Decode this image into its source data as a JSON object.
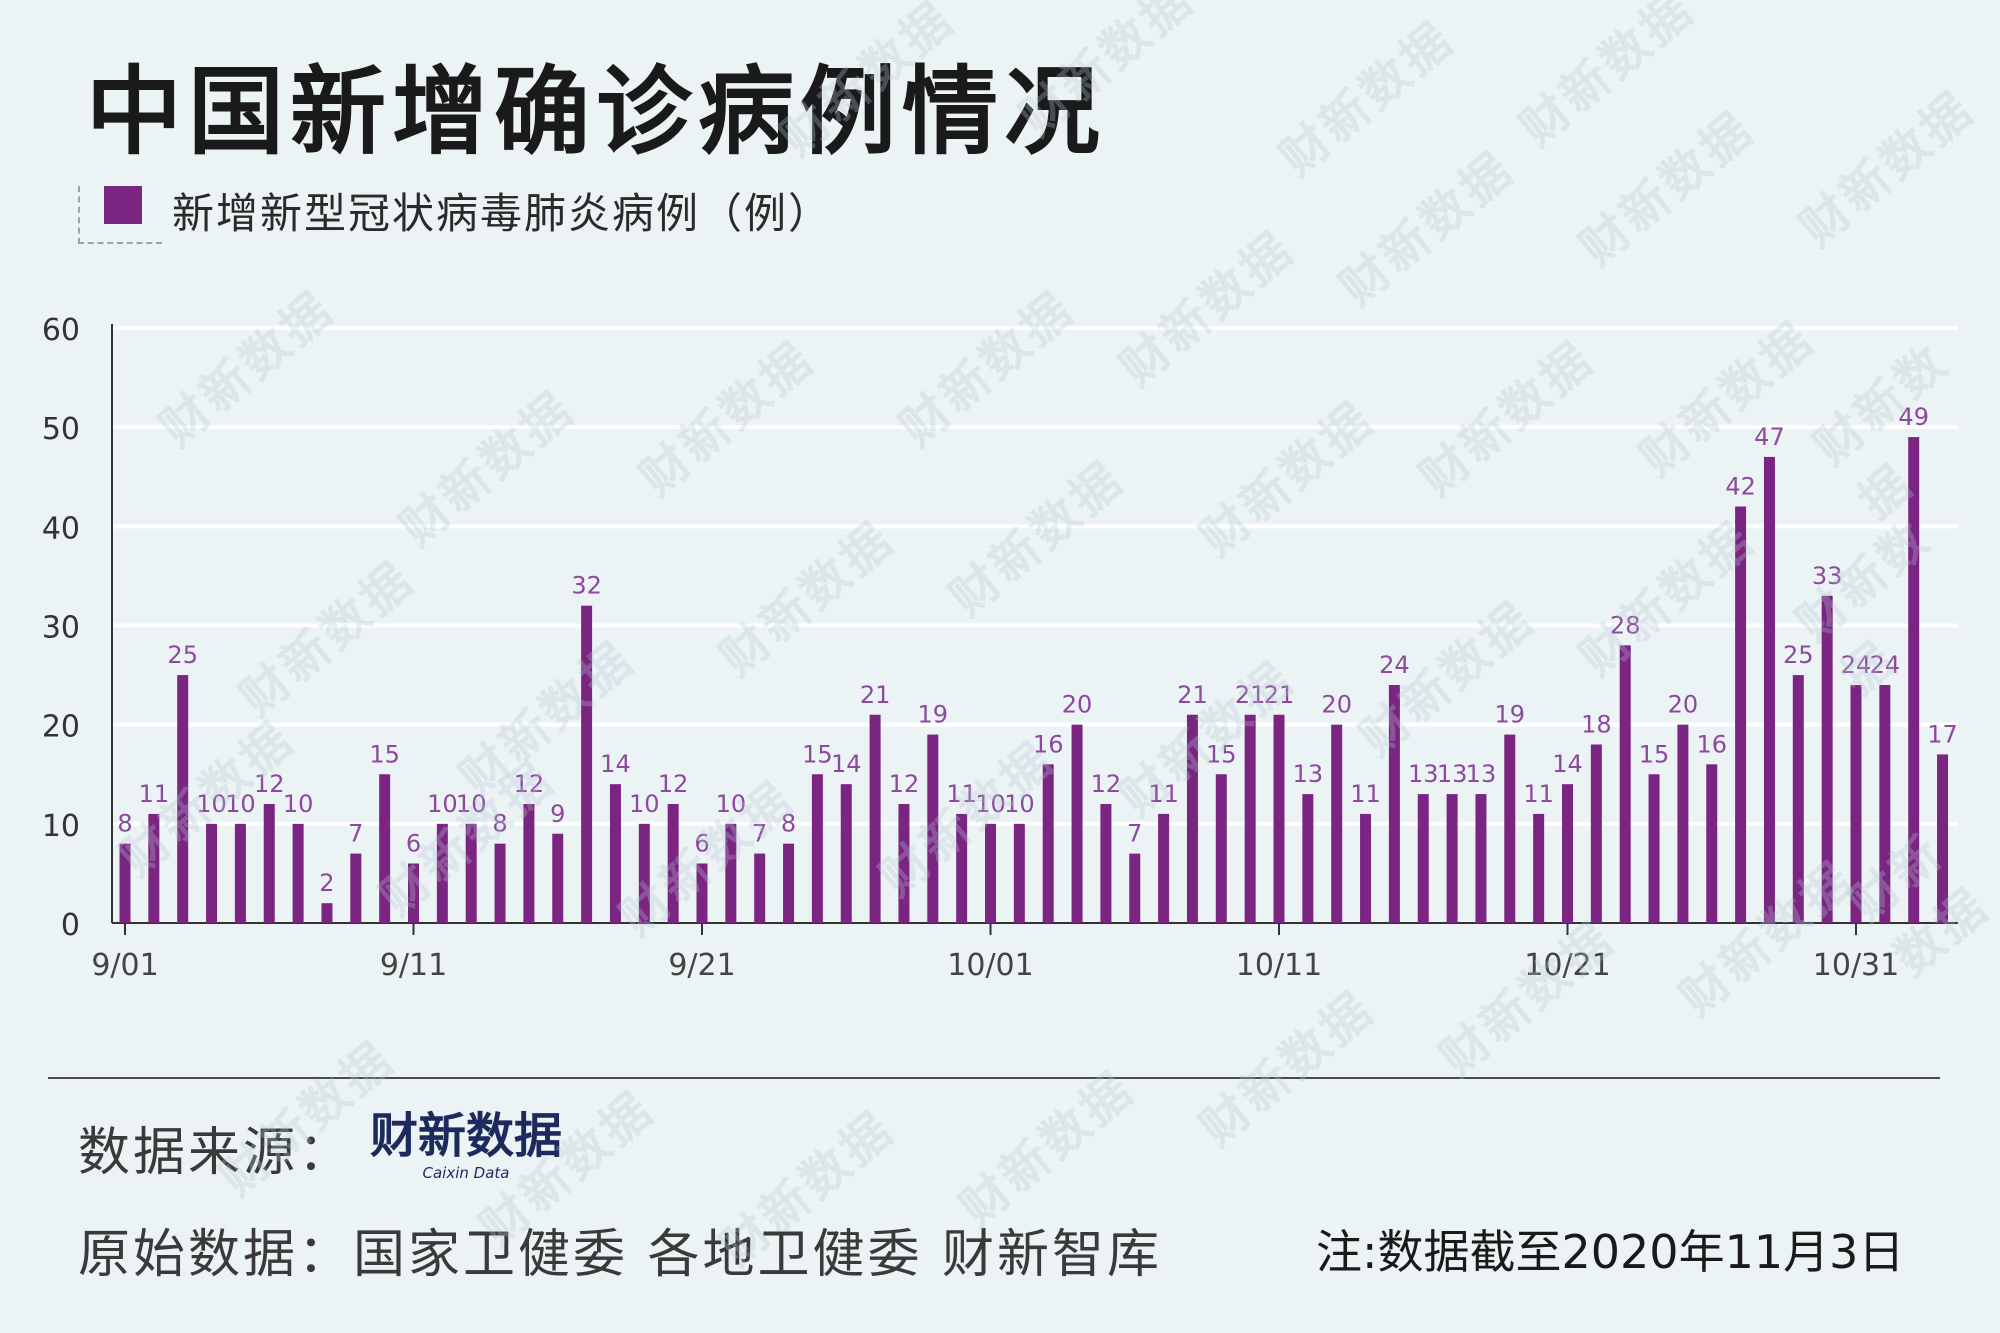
{
  "title": "中国新增确诊病例情况",
  "legend": {
    "label": "新增新型冠状病毒肺炎病例（例）",
    "color": "#7b2583"
  },
  "chart_data": {
    "type": "bar",
    "categories": [
      "9/01",
      "9/02",
      "9/03",
      "9/04",
      "9/05",
      "9/06",
      "9/07",
      "9/08",
      "9/09",
      "9/10",
      "9/11",
      "9/12",
      "9/13",
      "9/14",
      "9/15",
      "9/16",
      "9/17",
      "9/18",
      "9/19",
      "9/20",
      "9/21",
      "9/22",
      "9/23",
      "9/24",
      "9/25",
      "9/26",
      "9/27",
      "9/28",
      "9/29",
      "9/30",
      "10/01",
      "10/02",
      "10/03",
      "10/04",
      "10/05",
      "10/06",
      "10/07",
      "10/08",
      "10/09",
      "10/10",
      "10/11",
      "10/12",
      "10/13",
      "10/14",
      "10/15",
      "10/16",
      "10/17",
      "10/18",
      "10/19",
      "10/20",
      "10/21",
      "10/22",
      "10/23",
      "10/24",
      "10/25",
      "10/26",
      "10/27",
      "10/28",
      "10/29",
      "10/30",
      "10/31",
      "11/01",
      "11/02",
      "11/03"
    ],
    "values": [
      8,
      11,
      25,
      10,
      10,
      12,
      10,
      2,
      7,
      15,
      6,
      10,
      10,
      8,
      12,
      9,
      32,
      14,
      10,
      12,
      6,
      10,
      7,
      8,
      15,
      14,
      21,
      12,
      19,
      11,
      10,
      10,
      16,
      20,
      12,
      7,
      11,
      21,
      15,
      21,
      21,
      13,
      20,
      11,
      24,
      13,
      13,
      13,
      19,
      11,
      14,
      18,
      28,
      15,
      20,
      16,
      42,
      47,
      25,
      33,
      24,
      24,
      49,
      17
    ],
    "tick_labels": [
      "9/01",
      "9/11",
      "9/21",
      "10/01",
      "10/11",
      "10/21",
      "10/31"
    ],
    "tick_indices": [
      0,
      10,
      20,
      30,
      40,
      50,
      60
    ],
    "yticks": [
      0,
      10,
      20,
      30,
      40,
      50,
      60
    ],
    "ylim": [
      0,
      60
    ],
    "bar_color": "#7b2583",
    "label_color": "#8b4a9c",
    "grid": true
  },
  "source": {
    "label": "数据来源：",
    "logo_text": "财新数据",
    "logo_subtext": "Caixin Data"
  },
  "raw_source": "原始数据：国家卫健委 各地卫健委 财新智库",
  "note": "注:数据截至2020年11月3日",
  "watermark_text": "财新数据"
}
